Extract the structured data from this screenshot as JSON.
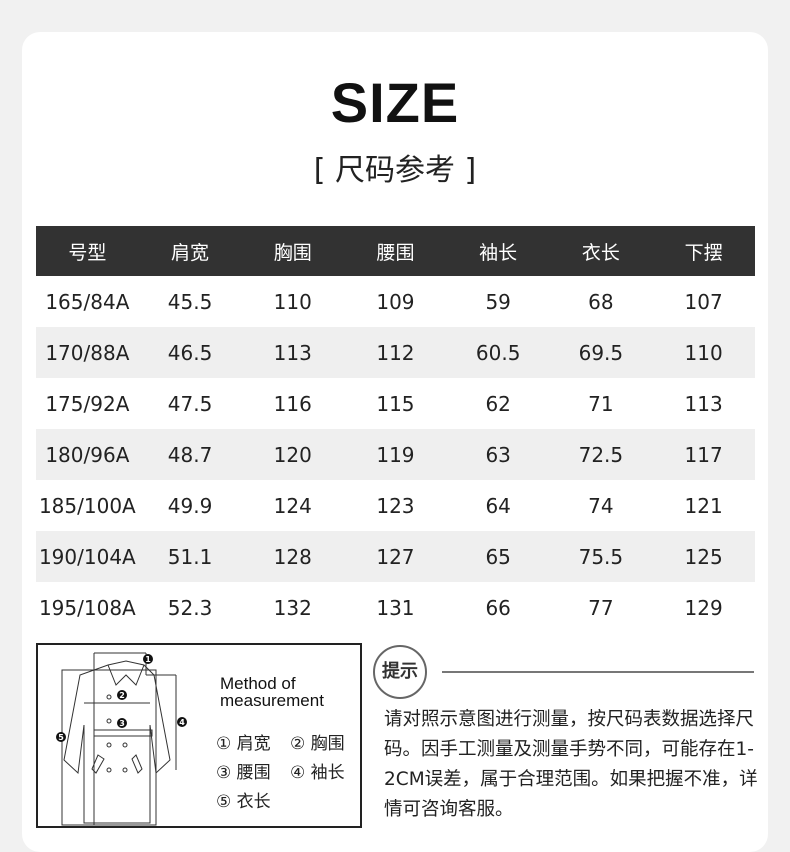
{
  "title": "SIZE",
  "subtitle": "[ 尺码参考 ]",
  "table": {
    "headers": [
      "号型",
      "肩宽",
      "胸围",
      "腰围",
      "袖长",
      "衣长",
      "下摆"
    ],
    "rows": [
      [
        "165/84A",
        "45.5",
        "110",
        "109",
        "59",
        "68",
        "107"
      ],
      [
        "170/88A",
        "46.5",
        "113",
        "112",
        "60.5",
        "69.5",
        "110"
      ],
      [
        "175/92A",
        "47.5",
        "116",
        "115",
        "62",
        "71",
        "113"
      ],
      [
        "180/96A",
        "48.7",
        "120",
        "119",
        "63",
        "72.5",
        "117"
      ],
      [
        "185/100A",
        "49.9",
        "124",
        "123",
        "64",
        "74",
        "121"
      ],
      [
        "190/104A",
        "51.1",
        "128",
        "127",
        "65",
        "75.5",
        "125"
      ],
      [
        "195/108A",
        "52.3",
        "132",
        "131",
        "66",
        "77",
        "129"
      ]
    ]
  },
  "diagram": {
    "method_line1": "Method of",
    "method_line2": "measurement",
    "legend": [
      "① 肩宽",
      "② 胸围",
      "③ 腰围",
      "④ 袖长",
      "⑤ 衣长"
    ],
    "markers": [
      "1",
      "2",
      "3",
      "4",
      "5"
    ]
  },
  "tip": {
    "label": "提示",
    "text": "请对照示意图进行测量，按尺码表数据选择尺码。因手工测量及测量手势不同，可能存在1-2CM误差，属于合理范围。如果把握不准，详情可咨询客服。"
  }
}
